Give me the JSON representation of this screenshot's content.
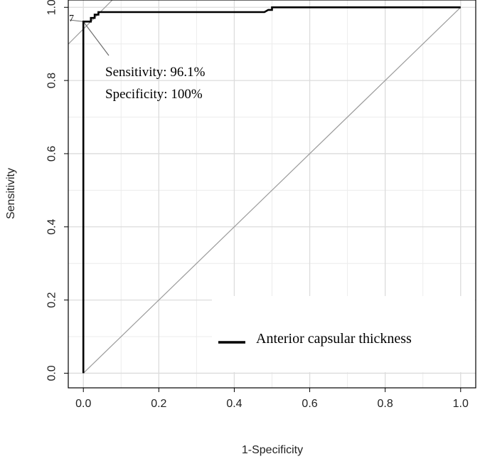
{
  "chart_data": {
    "type": "line",
    "title": "",
    "xlabel": "1-Specificity",
    "ylabel": "Sensitivity",
    "xlim": [
      -0.04,
      1.04
    ],
    "ylim": [
      -0.04,
      1.02
    ],
    "x_ticks": [
      "0.0",
      "0.2",
      "0.4",
      "0.6",
      "0.8",
      "1.0"
    ],
    "y_ticks": [
      "0.0",
      "0.2",
      "0.4",
      "0.6",
      "0.8",
      "1.0"
    ],
    "grid": true,
    "legend": {
      "position": "bottom-right",
      "entries": [
        "Anterior capsular thickness"
      ]
    },
    "series": [
      {
        "name": "Anterior capsular thickness",
        "color": "#000000",
        "x": [
          0,
          0,
          0.01,
          0.01,
          0.02,
          0.02,
          0.03,
          0.03,
          0.04,
          0.04,
          0.48,
          0.49,
          0.5,
          0.5,
          1.0
        ],
        "y": [
          0,
          0.961,
          0.961,
          0.961,
          0.961,
          0.971,
          0.971,
          0.98,
          0.98,
          0.987,
          0.987,
          0.993,
          0.993,
          1.0,
          1.0
        ]
      }
    ],
    "reference_line": {
      "x": [
        0,
        1
      ],
      "y": [
        0,
        1
      ],
      "color": "#9a9a9a"
    },
    "annotation": {
      "point": [
        0,
        0.961
      ],
      "marker": "7",
      "lines": [
        "Sensitivity: 96.1%",
        "Specificity: 100%"
      ]
    }
  }
}
